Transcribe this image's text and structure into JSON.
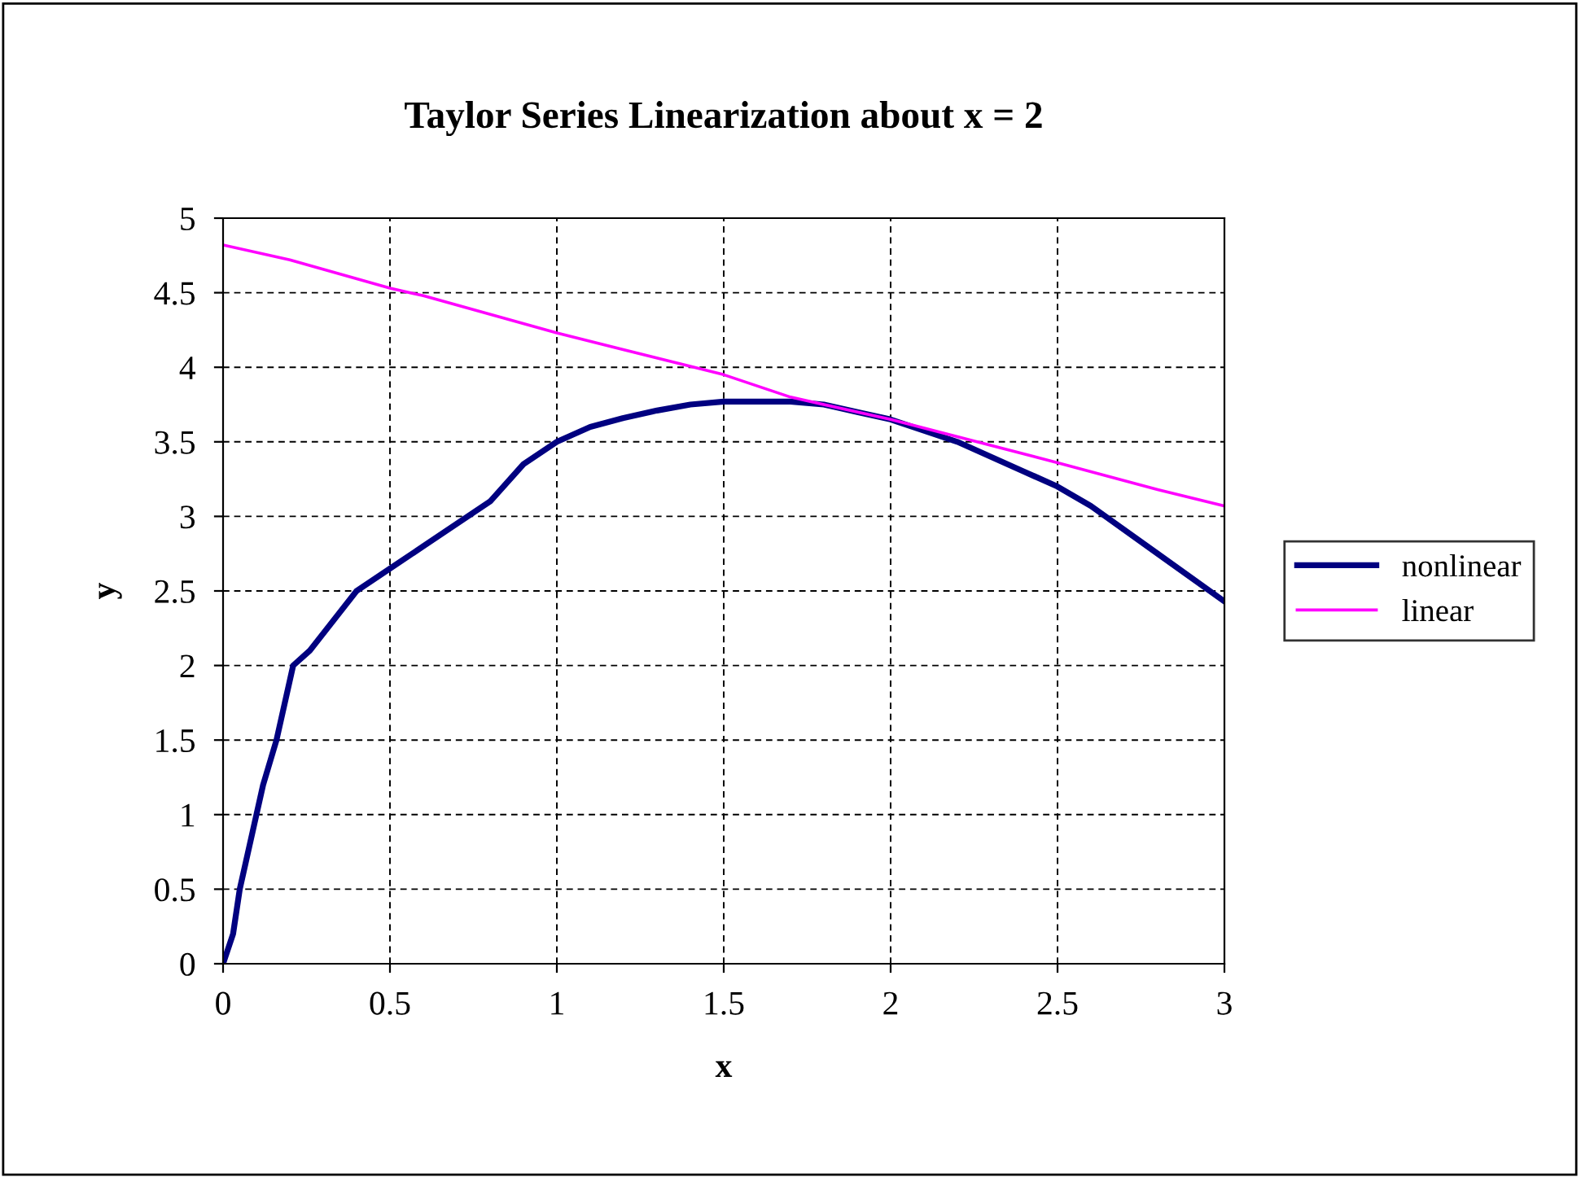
{
  "chart_data": {
    "type": "line",
    "title": "Taylor Series Linearization about x = 2",
    "xlabel": "x",
    "ylabel": "y",
    "series": [
      {
        "name": "nonlinear",
        "color": "#000080",
        "x": [
          0,
          0.03,
          0.05,
          0.1,
          0.12,
          0.16,
          0.21,
          0.26,
          0.4,
          0.5,
          0.6,
          0.7,
          0.8,
          0.9,
          1,
          1.1,
          1.2,
          1.3,
          1.4,
          1.5,
          1.7,
          1.8,
          1.9,
          2,
          2.2,
          2.4,
          2.5,
          2.6,
          2.8,
          3
        ],
        "values": [
          0,
          0.2,
          0.5,
          1,
          1.2,
          1.5,
          2,
          2.1,
          2.5,
          2.65,
          2.8,
          2.95,
          3.1,
          3.35,
          3.5,
          3.6,
          3.66,
          3.71,
          3.75,
          3.77,
          3.77,
          3.75,
          3.7,
          3.65,
          3.5,
          3.3,
          3.2,
          3.07,
          2.75,
          2.43
        ]
      },
      {
        "name": "linear",
        "color": "#ff00ff",
        "x": [
          0,
          0.2,
          0.5,
          0.6,
          1,
          1.5,
          1.7,
          2,
          2.5,
          2.8,
          3
        ],
        "values": [
          4.82,
          4.72,
          4.53,
          4.48,
          4.23,
          3.95,
          3.8,
          3.65,
          3.36,
          3.18,
          3.07
        ]
      }
    ],
    "xlim": [
      0,
      3
    ],
    "xticks": [
      0,
      0.5,
      1,
      1.5,
      2,
      2.5,
      3
    ],
    "ylim": [
      0,
      5
    ],
    "yticks": [
      0,
      0.5,
      1,
      1.5,
      2,
      2.5,
      3,
      3.5,
      4,
      4.5,
      5
    ],
    "grid": true,
    "legend": "right",
    "line_style": "solid",
    "marker": "none"
  }
}
